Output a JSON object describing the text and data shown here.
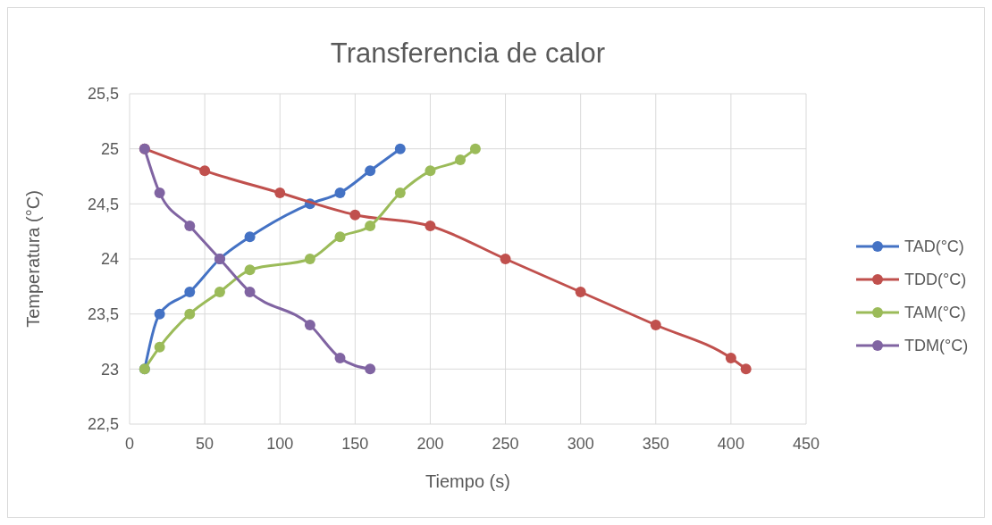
{
  "chart_data": {
    "type": "line",
    "title": "Transferencia de calor",
    "xlabel": "Tiempo (s)",
    "ylabel": "Temperatura (°C)",
    "xlim": [
      0,
      450
    ],
    "xticks": [
      0,
      50,
      100,
      150,
      200,
      250,
      300,
      350,
      400,
      450
    ],
    "ylim": [
      22.5,
      25.5
    ],
    "yticks": [
      {
        "value": 22.5,
        "label": "22,5"
      },
      23,
      {
        "value": 23.5,
        "label": "23,5"
      },
      24,
      {
        "value": 24.5,
        "label": "24,5"
      },
      25,
      {
        "value": 25.5,
        "label": "25,5"
      }
    ],
    "grid": true,
    "legend": "right",
    "marker": "circle",
    "line_style": "solid",
    "series": [
      {
        "name": "TAD(°C)",
        "color": "#4472c4",
        "x": [
          10,
          20,
          40,
          60,
          80,
          120,
          140,
          160,
          180
        ],
        "values": [
          23,
          23.5,
          23.7,
          24,
          24.2,
          24.5,
          24.6,
          24.8,
          25
        ]
      },
      {
        "name": "TDD(°C)",
        "color": "#c0504d",
        "x": [
          10,
          50,
          100,
          150,
          200,
          250,
          300,
          350,
          400,
          410
        ],
        "values": [
          25,
          24.8,
          24.6,
          24.4,
          24.3,
          24,
          23.7,
          23.4,
          23.1,
          23
        ]
      },
      {
        "name": "TAM(°C)",
        "color": "#9bbb59",
        "x": [
          10,
          20,
          40,
          60,
          80,
          120,
          140,
          160,
          180,
          200,
          220,
          230
        ],
        "values": [
          23,
          23.2,
          23.5,
          23.7,
          23.9,
          24,
          24.2,
          24.3,
          24.6,
          24.8,
          24.9,
          25
        ]
      },
      {
        "name": "TDM(°C)",
        "color": "#8064a2",
        "x": [
          10,
          20,
          40,
          60,
          80,
          120,
          140,
          160
        ],
        "values": [
          25,
          24.6,
          24.3,
          24,
          23.7,
          23.4,
          23.1,
          23
        ]
      }
    ]
  }
}
